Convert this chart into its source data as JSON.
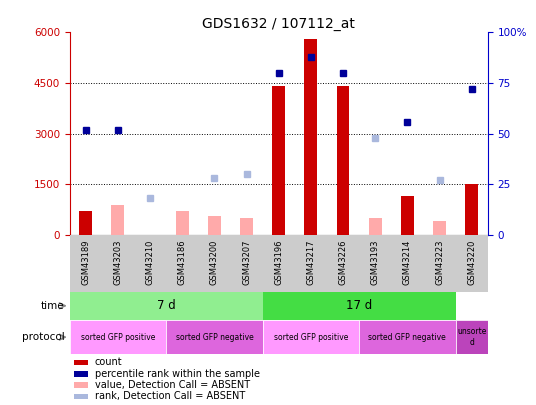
{
  "title": "GDS1632 / 107112_at",
  "samples": [
    "GSM43189",
    "GSM43203",
    "GSM43210",
    "GSM43186",
    "GSM43200",
    "GSM43207",
    "GSM43196",
    "GSM43217",
    "GSM43226",
    "GSM43193",
    "GSM43214",
    "GSM43223",
    "GSM43220"
  ],
  "count_values": [
    700,
    0,
    0,
    0,
    0,
    0,
    4400,
    5800,
    4400,
    0,
    1150,
    0,
    1500
  ],
  "count_absent": [
    0,
    900,
    0,
    700,
    550,
    500,
    0,
    0,
    0,
    500,
    0,
    400,
    0
  ],
  "percentile_present": [
    52,
    52,
    null,
    null,
    null,
    null,
    80,
    88,
    80,
    null,
    56,
    null,
    72
  ],
  "percentile_absent": [
    null,
    null,
    18,
    null,
    28,
    30,
    null,
    null,
    null,
    48,
    null,
    27,
    null
  ],
  "ylim_left": [
    0,
    6000
  ],
  "ylim_right": [
    0,
    100
  ],
  "yticks_left": [
    0,
    1500,
    3000,
    4500,
    6000
  ],
  "yticks_right": [
    0,
    25,
    50,
    75,
    100
  ],
  "ytick_right_labels": [
    "0",
    "25",
    "50",
    "75",
    "100%"
  ],
  "time_groups": [
    {
      "label": "7 d",
      "start": 0,
      "end": 6,
      "color": "#90ee90"
    },
    {
      "label": "17 d",
      "start": 6,
      "end": 12,
      "color": "#44dd44"
    }
  ],
  "protocol_groups": [
    {
      "label": "sorted GFP positive",
      "start": 0,
      "end": 3,
      "color": "#ff99ff"
    },
    {
      "label": "sorted GFP negative",
      "start": 3,
      "end": 6,
      "color": "#dd66dd"
    },
    {
      "label": "sorted GFP positive",
      "start": 6,
      "end": 9,
      "color": "#ff99ff"
    },
    {
      "label": "sorted GFP negative",
      "start": 9,
      "end": 12,
      "color": "#dd66dd"
    },
    {
      "label": "unsorte\nd",
      "start": 12,
      "end": 13,
      "color": "#bb44bb"
    }
  ],
  "bar_color_present": "#cc0000",
  "bar_color_absent": "#ffaaaa",
  "dot_color_present": "#000099",
  "dot_color_absent": "#aab8dd",
  "bg_color": "#cccccc",
  "left_axis_color": "#cc0000",
  "right_axis_color": "#0000cc",
  "legend": [
    {
      "color": "#cc0000",
      "type": "square",
      "label": "count"
    },
    {
      "color": "#000099",
      "type": "square",
      "label": "percentile rank within the sample"
    },
    {
      "color": "#ffaaaa",
      "type": "square",
      "label": "value, Detection Call = ABSENT"
    },
    {
      "color": "#aab8dd",
      "type": "square",
      "label": "rank, Detection Call = ABSENT"
    }
  ]
}
